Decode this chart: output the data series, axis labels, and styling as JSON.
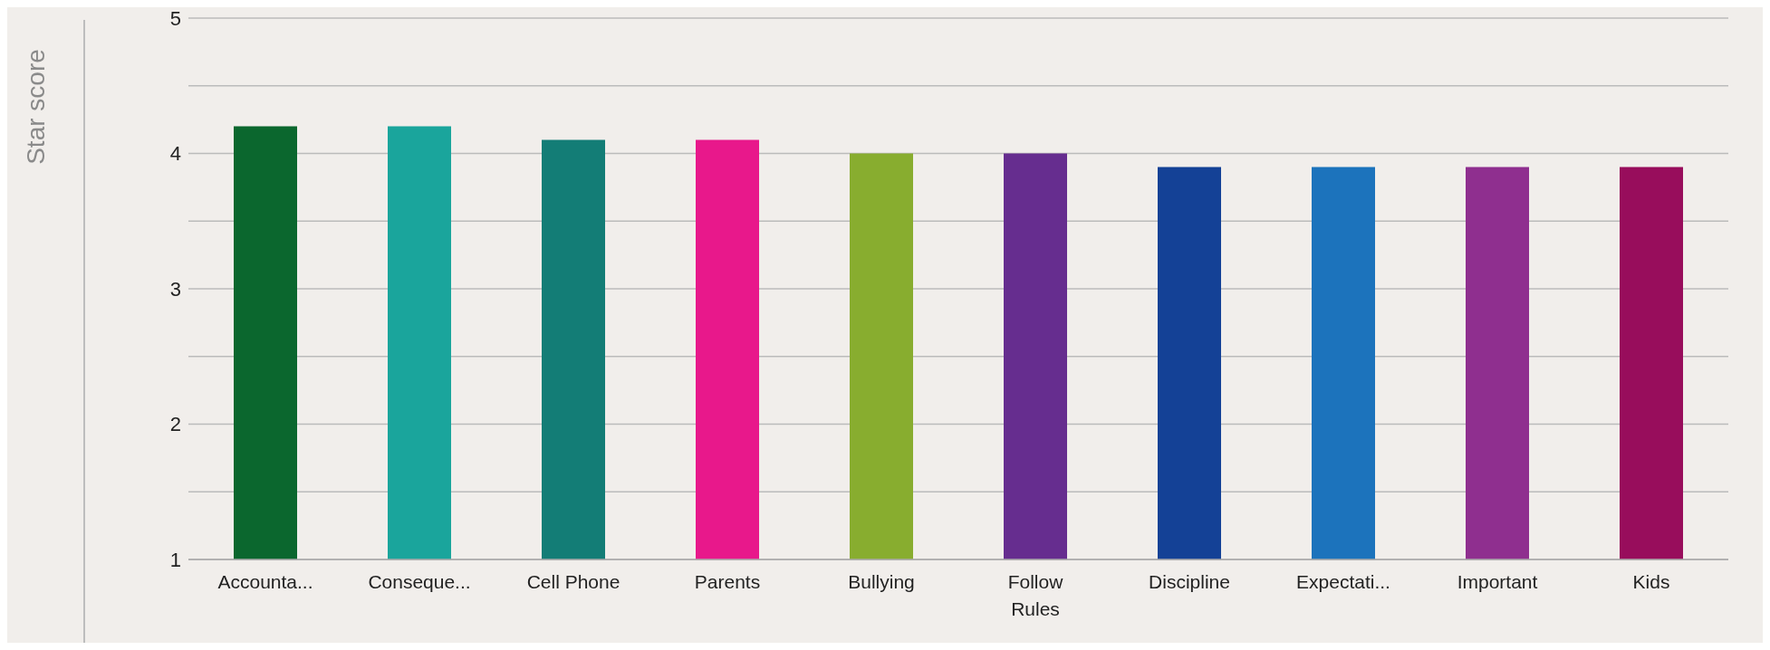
{
  "chart_data": {
    "type": "bar",
    "ylabel": "Star score",
    "categories": [
      "Accounta...",
      "Conseque...",
      "Cell Phone",
      "Parents",
      "Bullying",
      "Follow Rules",
      "Discipline",
      "Expectati...",
      "Important",
      "Kids"
    ],
    "values": [
      4.2,
      4.2,
      4.1,
      4.1,
      4.0,
      4.0,
      3.9,
      3.9,
      3.9,
      3.9
    ],
    "colors": [
      "#0b672e",
      "#1aa59c",
      "#137d76",
      "#e8188b",
      "#88ad2f",
      "#662d8f",
      "#144196",
      "#1c73bc",
      "#8f2f8f",
      "#980d5c"
    ],
    "ylim": [
      1,
      5
    ],
    "yticks": [
      1,
      {
        "value": 1.5,
        "label": null
      },
      2,
      {
        "value": 2.5,
        "label": null
      },
      3,
      {
        "value": 3.5,
        "label": null
      },
      4,
      {
        "value": 4.5,
        "label": null
      },
      5
    ],
    "grid": "y"
  }
}
